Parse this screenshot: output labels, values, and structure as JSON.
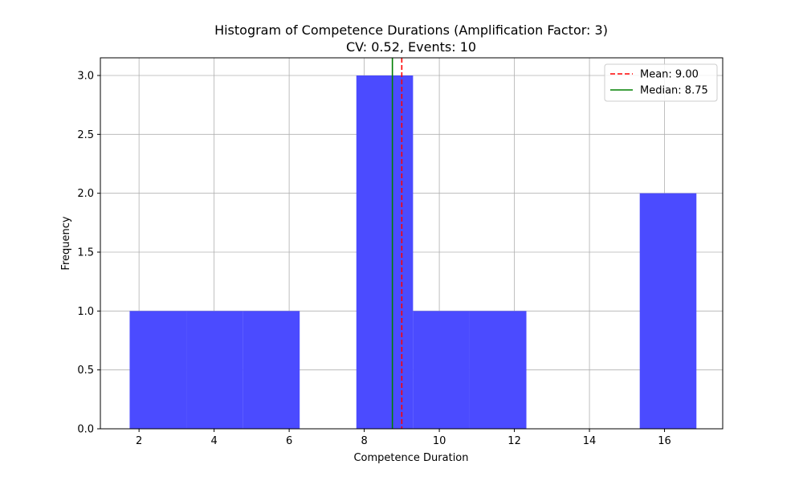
{
  "chart_data": {
    "type": "bar",
    "title": "Histogram of Competence Durations (Amplification Factor: 3)",
    "subtitle": "CV: 0.52, Events: 10",
    "xlabel": "Competence Duration",
    "ylabel": "Frequency",
    "xlim": [
      0.97,
      17.55
    ],
    "ylim": [
      0,
      3.15
    ],
    "xticks": [
      2,
      4,
      6,
      8,
      10,
      12,
      14,
      16
    ],
    "yticks": [
      0.0,
      0.5,
      1.0,
      1.5,
      2.0,
      2.5,
      3.0
    ],
    "ytick_labels": [
      "0.0",
      "0.5",
      "1.0",
      "1.5",
      "2.0",
      "2.5",
      "3.0"
    ],
    "grid": true,
    "bins": [
      {
        "x0": 1.75,
        "x1": 3.26,
        "count": 1
      },
      {
        "x0": 3.26,
        "x1": 4.77,
        "count": 1
      },
      {
        "x0": 4.77,
        "x1": 6.28,
        "count": 1
      },
      {
        "x0": 6.28,
        "x1": 7.79,
        "count": 0
      },
      {
        "x0": 7.79,
        "x1": 9.3,
        "count": 3
      },
      {
        "x0": 9.3,
        "x1": 10.81,
        "count": 1
      },
      {
        "x0": 10.81,
        "x1": 12.32,
        "count": 1
      },
      {
        "x0": 12.32,
        "x1": 13.83,
        "count": 0
      },
      {
        "x0": 13.83,
        "x1": 15.34,
        "count": 0
      },
      {
        "x0": 15.34,
        "x1": 16.85,
        "count": 2
      }
    ],
    "bar_color": "#4b4bff",
    "lines": [
      {
        "label": "Mean: 9.00",
        "x": 9.0,
        "color": "#ff0000",
        "style": "dashed"
      },
      {
        "label": "Median: 8.75",
        "x": 8.75,
        "color": "#008000",
        "style": "solid"
      }
    ],
    "legend_position": "top-right"
  }
}
